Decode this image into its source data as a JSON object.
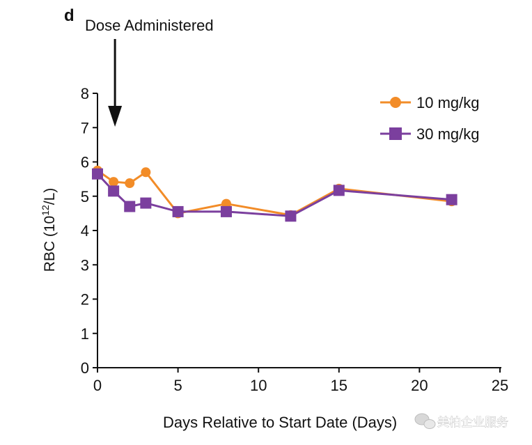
{
  "chart_data": {
    "type": "line",
    "panel_label": "d",
    "annotation": {
      "text": "Dose Administered",
      "x": 1
    },
    "xlabel": "Days Relative to Start Date (Days)",
    "ylabel_main": "RBC (10",
    "ylabel_sup": "12",
    "ylabel_tail": "/L)",
    "xlim": [
      0,
      25
    ],
    "ylim": [
      0,
      8
    ],
    "x_ticks": [
      0,
      5,
      10,
      15,
      20,
      25
    ],
    "y_ticks": [
      0,
      1,
      2,
      3,
      4,
      5,
      6,
      7,
      8
    ],
    "grid": false,
    "legend_position": "top-right",
    "series": [
      {
        "name": "10 mg/kg",
        "color": "#F28C28",
        "marker": "circle",
        "x": [
          0,
          1,
          2,
          3,
          5,
          8,
          12,
          15,
          22
        ],
        "y": [
          5.75,
          5.42,
          5.38,
          5.7,
          4.5,
          4.78,
          4.45,
          5.22,
          4.85
        ]
      },
      {
        "name": "30 mg/kg",
        "color": "#7B3F9E",
        "marker": "square",
        "x": [
          0,
          1,
          2,
          3,
          5,
          8,
          12,
          15,
          22
        ],
        "y": [
          5.65,
          5.15,
          4.7,
          4.8,
          4.55,
          4.55,
          4.42,
          5.17,
          4.9
        ]
      }
    ]
  },
  "watermark": {
    "text": "美柏企业服务"
  }
}
